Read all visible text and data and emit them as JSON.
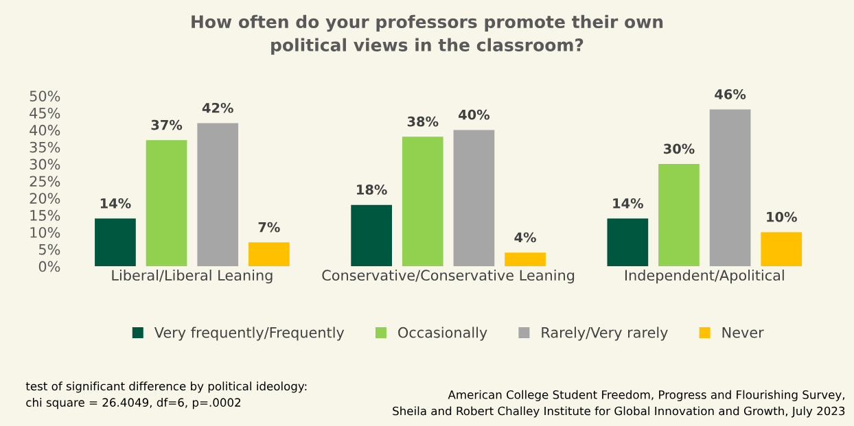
{
  "chart_data": {
    "type": "bar",
    "title": "How often do your professors promote their own\npolitical views in the classroom?",
    "categories": [
      "Liberal/Liberal Leaning",
      "Conservative/Conservative Leaning",
      "Independent/Apolitical"
    ],
    "series": [
      {
        "name": "Very frequently/Frequently",
        "color": "#00573f",
        "values": [
          14,
          18,
          14
        ],
        "value_labels": [
          "14%",
          "18%",
          "14%"
        ]
      },
      {
        "name": "Occasionally",
        "color": "#92d050",
        "values": [
          37,
          38,
          30
        ],
        "value_labels": [
          "37%",
          "38%",
          "30%"
        ]
      },
      {
        "name": "Rarely/Very rarely",
        "color": "#a6a6a6",
        "values": [
          42,
          40,
          46
        ],
        "value_labels": [
          "42%",
          "40%",
          "46%"
        ]
      },
      {
        "name": "Never",
        "color": "#ffc000",
        "values": [
          7,
          4,
          10
        ],
        "value_labels": [
          "7%",
          "4%",
          "10%"
        ]
      }
    ],
    "ylim": [
      0,
      50
    ],
    "yticks": [
      {
        "value": 0,
        "label": "0%"
      },
      {
        "value": 5,
        "label": "5%"
      },
      {
        "value": 10,
        "label": "10%"
      },
      {
        "value": 15,
        "label": "15%"
      },
      {
        "value": 20,
        "label": "20%"
      },
      {
        "value": 25,
        "label": "25%"
      },
      {
        "value": 30,
        "label": "30%"
      },
      {
        "value": 35,
        "label": "35%"
      },
      {
        "value": 40,
        "label": "40%"
      },
      {
        "value": 45,
        "label": "45%"
      },
      {
        "value": 50,
        "label": "50%"
      }
    ],
    "grid": false,
    "legend": "bottom",
    "annotations": [
      "test of significant difference by political ideology:\nchi square = 26.4049, df=6, p=.0002",
      "American College Student Freedom, Progress and Flourishing Survey,\nSheila and Robert Challey Institute for Global Innovation and Growth, July 2023"
    ]
  }
}
